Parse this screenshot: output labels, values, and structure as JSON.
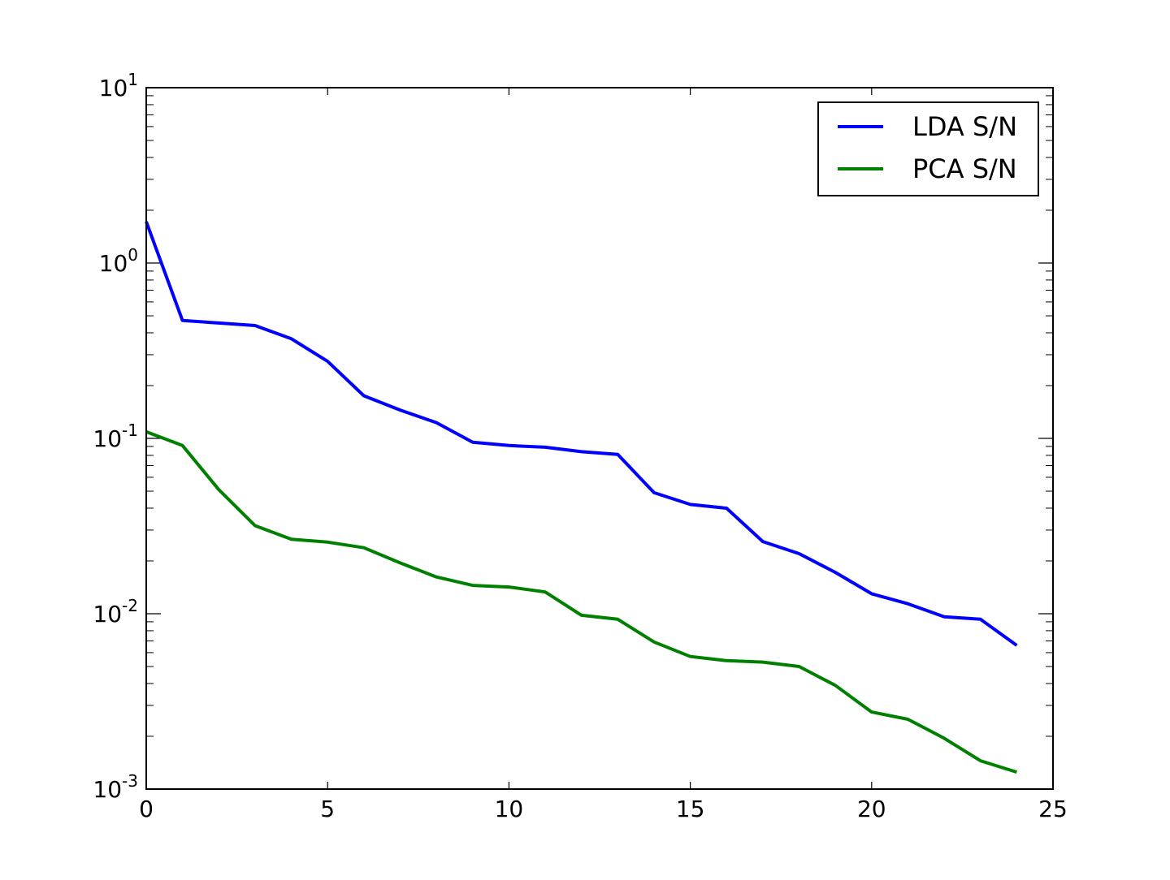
{
  "chart_data": {
    "type": "line",
    "title": "",
    "xlabel": "",
    "ylabel": "",
    "xlim": [
      0,
      25
    ],
    "ylim": [
      0.001,
      10
    ],
    "yscale": "log",
    "grid": false,
    "legend_position": "top-right",
    "x_ticks": [
      0,
      5,
      10,
      15,
      20,
      25
    ],
    "x_tick_labels": [
      "0",
      "5",
      "10",
      "15",
      "20",
      "25"
    ],
    "y_ticks": [
      0.001,
      0.01,
      0.1,
      1,
      10
    ],
    "y_tick_labels": [
      {
        "base": "10",
        "exp": "-3"
      },
      {
        "base": "10",
        "exp": "-2"
      },
      {
        "base": "10",
        "exp": "-1"
      },
      {
        "base": "10",
        "exp": "0"
      },
      {
        "base": "10",
        "exp": "1"
      }
    ],
    "x": [
      0,
      1,
      2,
      3,
      4,
      5,
      6,
      7,
      8,
      9,
      10,
      11,
      12,
      13,
      14,
      15,
      16,
      17,
      18,
      19,
      20,
      21,
      22,
      23,
      24
    ],
    "series": [
      {
        "name": "LDA S/N",
        "color": "#0000ff",
        "values": [
          1.72,
          0.47,
          0.455,
          0.44,
          0.37,
          0.275,
          0.175,
          0.145,
          0.123,
          0.095,
          0.091,
          0.089,
          0.084,
          0.081,
          0.049,
          0.042,
          0.04,
          0.0258,
          0.022,
          0.0172,
          0.013,
          0.0114,
          0.0096,
          0.0093,
          0.0066
        ]
      },
      {
        "name": "PCA S/N",
        "color": "#008000",
        "values": [
          0.109,
          0.091,
          0.051,
          0.0318,
          0.0266,
          0.0256,
          0.0238,
          0.0195,
          0.0162,
          0.0145,
          0.0142,
          0.0133,
          0.0098,
          0.0093,
          0.0069,
          0.0057,
          0.0054,
          0.0053,
          0.005,
          0.0039,
          0.00275,
          0.0025,
          0.00195,
          0.00145,
          0.00125
        ]
      }
    ]
  }
}
